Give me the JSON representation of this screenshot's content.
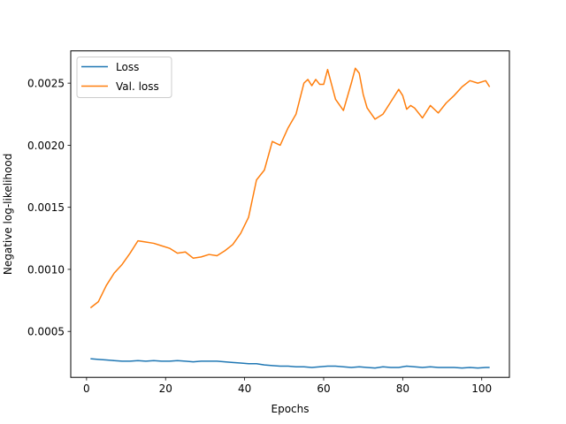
{
  "chart_data": {
    "type": "line",
    "xlabel": "Epochs",
    "ylabel": "Negative log-likelihood",
    "xlim": [
      -4,
      107
    ],
    "ylim": [
      0.00013,
      0.00276
    ],
    "xticks": [
      0,
      20,
      40,
      60,
      80,
      100
    ],
    "yticks": [
      0.0005,
      0.001,
      0.0015,
      0.002,
      0.0025
    ],
    "ytick_labels": [
      "0.0005",
      "0.0010",
      "0.0015",
      "0.0020",
      "0.0025"
    ],
    "grid": false,
    "legend_position": "upper-left",
    "series": [
      {
        "name": "Loss",
        "color": "#1f77b4",
        "x": [
          1,
          3,
          5,
          7,
          9,
          11,
          13,
          15,
          17,
          19,
          21,
          23,
          25,
          27,
          29,
          31,
          33,
          35,
          37,
          39,
          41,
          43,
          45,
          47,
          49,
          51,
          53,
          55,
          57,
          59,
          61,
          63,
          65,
          67,
          69,
          71,
          73,
          75,
          77,
          79,
          81,
          83,
          85,
          87,
          89,
          91,
          93,
          95,
          97,
          99,
          101,
          102
        ],
        "y": [
          0.00028,
          0.000275,
          0.00027,
          0.000265,
          0.00026,
          0.00026,
          0.000265,
          0.00026,
          0.000265,
          0.00026,
          0.00026,
          0.000265,
          0.00026,
          0.000255,
          0.00026,
          0.00026,
          0.00026,
          0.000255,
          0.00025,
          0.000245,
          0.00024,
          0.00024,
          0.00023,
          0.000225,
          0.00022,
          0.00022,
          0.000215,
          0.000215,
          0.00021,
          0.000215,
          0.00022,
          0.00022,
          0.000215,
          0.00021,
          0.000215,
          0.00021,
          0.000205,
          0.000215,
          0.00021,
          0.00021,
          0.00022,
          0.000215,
          0.00021,
          0.000215,
          0.00021,
          0.00021,
          0.00021,
          0.000205,
          0.00021,
          0.000205,
          0.00021,
          0.00021
        ]
      },
      {
        "name": "Val. loss",
        "color": "#ff7f0e",
        "x": [
          1,
          3,
          5,
          7,
          9,
          11,
          13,
          15,
          17,
          19,
          21,
          23,
          25,
          27,
          29,
          31,
          33,
          35,
          37,
          39,
          41,
          43,
          45,
          47,
          49,
          51,
          53,
          55,
          56,
          57,
          58,
          59,
          60,
          61,
          63,
          65,
          67,
          68,
          69,
          70,
          71,
          73,
          75,
          77,
          79,
          80,
          81,
          82,
          83,
          85,
          87,
          89,
          91,
          93,
          95,
          97,
          99,
          101,
          102
        ],
        "y": [
          0.00069,
          0.00074,
          0.00087,
          0.00097,
          0.00104,
          0.00113,
          0.00123,
          0.00122,
          0.00121,
          0.00119,
          0.00117,
          0.00113,
          0.00114,
          0.00109,
          0.0011,
          0.00112,
          0.00111,
          0.00115,
          0.0012,
          0.00129,
          0.00142,
          0.00172,
          0.0018,
          0.00203,
          0.002,
          0.00214,
          0.00225,
          0.0025,
          0.00253,
          0.00248,
          0.00253,
          0.00249,
          0.00249,
          0.00261,
          0.00237,
          0.00228,
          0.0025,
          0.00262,
          0.00258,
          0.00241,
          0.0023,
          0.00221,
          0.00225,
          0.00235,
          0.00245,
          0.0024,
          0.00229,
          0.00232,
          0.0023,
          0.00222,
          0.00232,
          0.00226,
          0.00234,
          0.0024,
          0.00247,
          0.00252,
          0.0025,
          0.00252,
          0.00247
        ]
      }
    ]
  }
}
